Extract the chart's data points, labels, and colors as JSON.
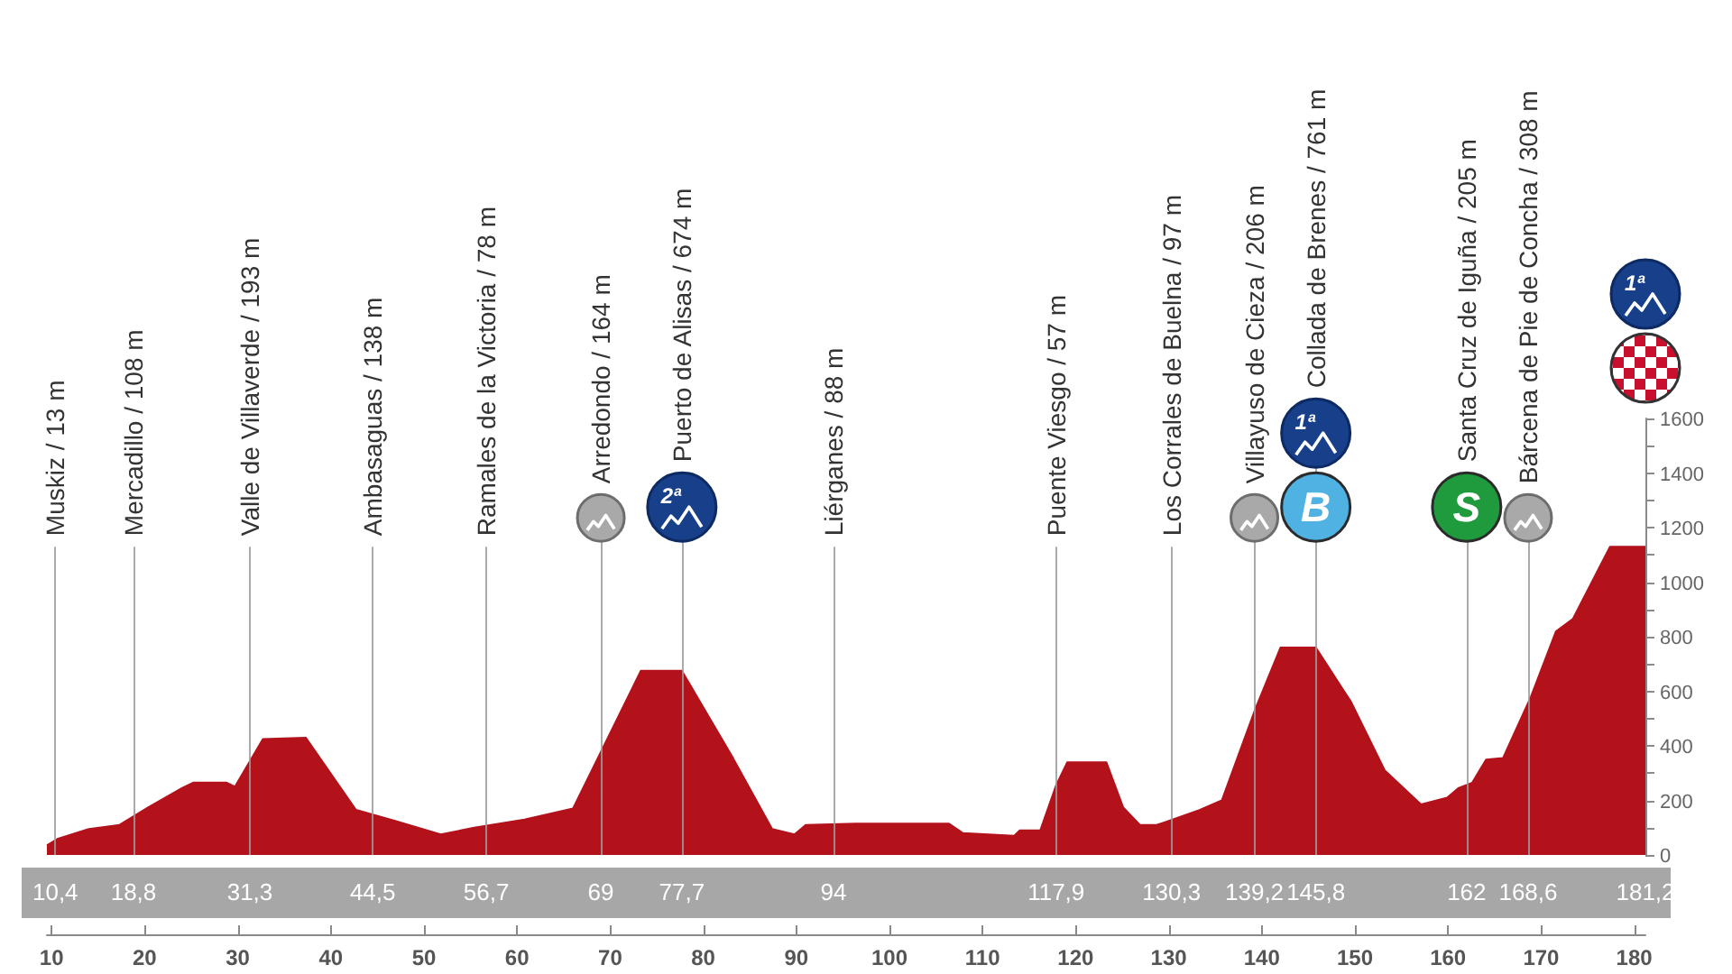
{
  "chart_data": {
    "type": "area",
    "color": "#b3121b",
    "x": [
      9.5,
      10.7,
      14.0,
      17.3,
      20.4,
      24.0,
      25.2,
      28.8,
      29.7,
      32.7,
      37.3,
      42.7,
      46.9,
      51.8,
      55.4,
      60.8,
      66.0,
      73.3,
      77.7,
      83.2,
      87.4,
      89.8,
      91.0,
      96.4,
      106.4,
      107.9,
      113.4,
      114.0,
      116.2,
      117.9,
      119.1,
      123.3,
      125.1,
      126.9,
      128.7,
      129.6,
      133.3,
      135.7,
      139.3,
      142.0,
      145.8,
      149.6,
      153.2,
      157.1,
      159.9,
      161.1,
      162.6,
      164.1,
      165.9,
      168.9,
      171.6,
      173.4,
      177.4,
      181.2
    ],
    "values": [
      35,
      60,
      95,
      110,
      175,
      245,
      265,
      265,
      250,
      425,
      430,
      165,
      125,
      75,
      100,
      130,
      170,
      675,
      675,
      355,
      95,
      75,
      110,
      115,
      115,
      80,
      70,
      90,
      90,
      255,
      340,
      340,
      175,
      110,
      110,
      120,
      165,
      200,
      535,
      760,
      760,
      560,
      310,
      185,
      210,
      245,
      265,
      350,
      355,
      580,
      820,
      865,
      1130,
      1130
    ],
    "xlim": [
      9.5,
      181.2
    ],
    "xticks": [
      10,
      20,
      30,
      40,
      50,
      60,
      70,
      80,
      90,
      100,
      110,
      120,
      130,
      140,
      150,
      160,
      170,
      180
    ],
    "x2lim": [
      9.5,
      181.2
    ],
    "x2ticks": [
      {
        "value": 10.4,
        "label": "10,4"
      },
      {
        "value": 18.8,
        "label": "18,8"
      },
      {
        "value": 31.3,
        "label": "31,3"
      },
      {
        "value": 44.5,
        "label": "44,5"
      },
      {
        "value": 56.7,
        "label": "56,7"
      },
      69,
      {
        "value": 77.7,
        "label": "77,7"
      },
      94,
      {
        "value": 117.9,
        "label": "117,9"
      },
      {
        "value": 130.3,
        "label": "130,3"
      },
      {
        "value": 139.2,
        "label": "139,2"
      },
      {
        "value": 145.8,
        "label": "145,8"
      },
      162,
      {
        "value": 168.6,
        "label": "168,6"
      },
      {
        "value": 181.2,
        "label": "181,2"
      }
    ],
    "ylim": [
      0,
      1600
    ],
    "yticks": [
      0,
      {
        "value": 100,
        "label": null
      },
      200,
      {
        "value": 300,
        "label": null
      },
      400,
      {
        "value": 500,
        "label": null
      },
      600,
      {
        "value": 700,
        "label": null
      },
      800,
      {
        "value": 900,
        "label": null
      },
      1000,
      {
        "value": 1100,
        "label": null
      },
      1200,
      {
        "value": 1300,
        "label": null
      },
      1400,
      {
        "value": 1500,
        "label": null
      },
      1600
    ],
    "ref_lines": [
      {
        "axis": "x",
        "value": 10.4,
        "label": "Muskiz / 13 m"
      },
      {
        "axis": "x",
        "value": 18.8,
        "label": "Mercadillo / 108 m"
      },
      {
        "axis": "x",
        "value": 31.3,
        "label": "Valle de Villaverde / 193 m"
      },
      {
        "axis": "x",
        "value": 44.5,
        "label": "Ambasaguas / 138 m"
      },
      {
        "axis": "x",
        "value": 56.7,
        "label": "Ramales de la Victoria / 78 m"
      },
      {
        "axis": "x",
        "value": 69,
        "label": "Arredondo / 164 m"
      },
      {
        "axis": "x",
        "value": 77.7,
        "label": "Puerto de Alisas / 674 m"
      },
      {
        "axis": "x",
        "value": 94,
        "label": "Liérganes / 88 m"
      },
      {
        "axis": "x",
        "value": 117.9,
        "label": "Puente Viesgo / 57 m"
      },
      {
        "axis": "x",
        "value": 130.3,
        "label": "Los Corrales de Buelna / 97 m"
      },
      {
        "axis": "x",
        "value": 139.2,
        "label": "Villayuso de Cieza / 206 m"
      },
      {
        "axis": "x",
        "value": 145.8,
        "label": "Collada de Brenes / 761 m"
      },
      {
        "axis": "x",
        "value": 162,
        "label": "Santa Cruz de Iguña / 205 m"
      },
      {
        "axis": "x",
        "value": 168.6,
        "label": "Bárcena de Pie de Concha / 308 m"
      }
    ],
    "annotations": [
      "2ª",
      "B",
      "1ª",
      "S",
      "1ª"
    ]
  }
}
